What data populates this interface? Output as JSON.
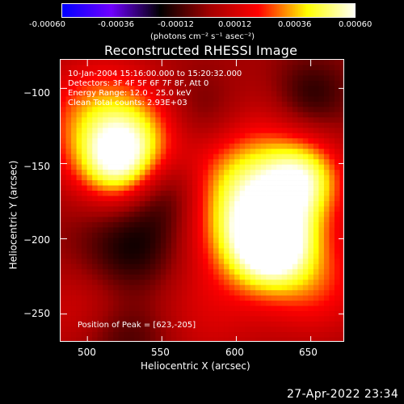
{
  "chart_data": {
    "type": "heatmap",
    "title": "Reconstructed RHESSI Image",
    "colorbar": {
      "label": "(photons cm⁻² s⁻¹ asec⁻²)",
      "range": [
        -0.0006,
        0.0006
      ],
      "tick_labels": [
        "-0.00060",
        "-0.00036",
        "-0.00012",
        "0.00012",
        "0.00036",
        "0.00060"
      ],
      "colors": [
        "#0000ff",
        "#6f00ff",
        "#000000",
        "#a10000",
        "#ff0000",
        "#ffff00",
        "#ffffff"
      ]
    },
    "x_axis": {
      "label": "Heliocentric X (arcsec)",
      "range": [
        482,
        673
      ],
      "ticks": [
        500,
        550,
        600,
        650
      ],
      "tick_labels": [
        "500",
        "550",
        "600",
        "650"
      ]
    },
    "y_axis": {
      "label": "Heliocentric Y (arcsec)",
      "range": [
        -269,
        -81
      ],
      "ticks": [
        -100,
        -150,
        -200,
        -250
      ],
      "tick_labels": [
        "−100",
        "−150",
        "−200",
        "−250"
      ]
    },
    "annotations": {
      "line1": "10-Jan-2004 15:16:00.000 to 15:20:32.000",
      "line2": "Detectors: 3F 4F 5F 6F 7F 8F, Att 0",
      "line3": "Energy Range: 12.0 - 25.0 keV",
      "line4": "Clean     Total counts: 2.93E+03",
      "peak": "Position of Peak = [623,-205]"
    },
    "footer_timestamp": "27-Apr-2022 23:34",
    "blobs": [
      {
        "x": 508,
        "y": -122,
        "sx": 28,
        "sy": 28,
        "amp": 0.00033
      },
      {
        "x": 520,
        "y": -150,
        "sx": 18,
        "sy": 18,
        "amp": 0.00038
      },
      {
        "x": 540,
        "y": -135,
        "sx": 24,
        "sy": 22,
        "amp": 0.00024
      },
      {
        "x": 600,
        "y": -155,
        "sx": 35,
        "sy": 36,
        "amp": 0.00022
      },
      {
        "x": 615,
        "y": -182,
        "sx": 30,
        "sy": 30,
        "amp": 0.00039
      },
      {
        "x": 623,
        "y": -205,
        "sx": 19,
        "sy": 19,
        "amp": 0.0005
      },
      {
        "x": 645,
        "y": -160,
        "sx": 18,
        "sy": 18,
        "amp": 0.00034
      },
      {
        "x": 655,
        "y": -232,
        "sx": 24,
        "sy": 24,
        "amp": 0.0002
      },
      {
        "x": 575,
        "y": -250,
        "sx": 32,
        "sy": 28,
        "amp": 0.00013
      },
      {
        "x": 500,
        "y": -250,
        "sx": 26,
        "sy": 24,
        "amp": 0.00015
      },
      {
        "x": 530,
        "y": -210,
        "sx": 25,
        "sy": 24,
        "amp": -0.0002
      },
      {
        "x": 555,
        "y": -165,
        "sx": 20,
        "sy": 22,
        "amp": -0.00024
      },
      {
        "x": 575,
        "y": -120,
        "sx": 22,
        "sy": 20,
        "amp": -0.00018
      },
      {
        "x": 525,
        "y": -265,
        "sx": 24,
        "sy": 18,
        "amp": -0.00018
      },
      {
        "x": 650,
        "y": -105,
        "sx": 18,
        "sy": 18,
        "amp": -0.00016
      }
    ]
  }
}
